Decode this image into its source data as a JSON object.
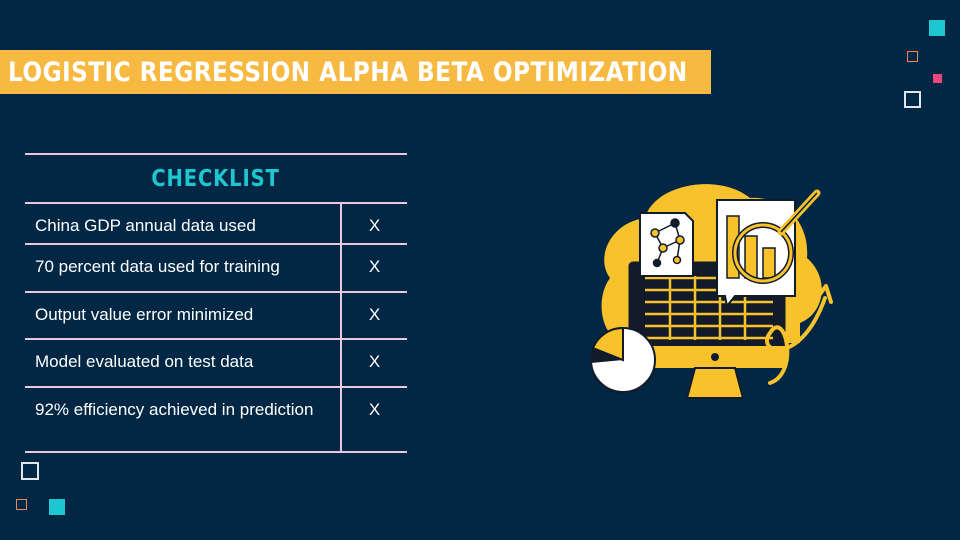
{
  "slide": {
    "title": "LOGISTIC REGRESSION ALPHA BETA OPTIMIZATION"
  },
  "checklist": {
    "heading": "CHECKLIST",
    "rows": [
      {
        "task": "China GDP annual data used",
        "mark": "X"
      },
      {
        "task": "70 percent data used for training",
        "mark": "X"
      },
      {
        "task": "Output value error minimized",
        "mark": "X"
      },
      {
        "task": "Model evaluated on test data",
        "mark": "X"
      },
      {
        "task": "92% efficiency achieved in prediction",
        "mark": "X"
      }
    ]
  },
  "illustration": {
    "icon": "data-analysis-illustration"
  },
  "colors": {
    "background": "#022745",
    "accent_yellow": "#f7b942",
    "accent_cyan": "#1ec7cf",
    "accent_pink": "#e8467c",
    "table_lines": "#e8c9e0"
  }
}
